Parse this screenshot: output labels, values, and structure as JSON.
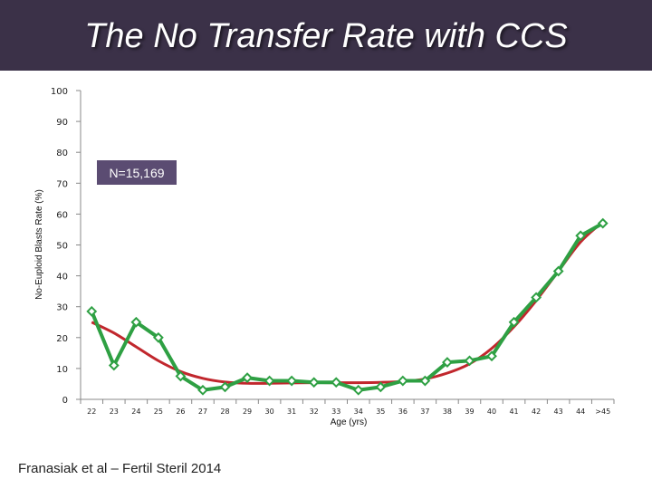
{
  "slide": {
    "title": "The No Transfer Rate with CCS",
    "annotation": "N=15,169",
    "citation": "Franasiak et al – Fertil Steril 2014"
  },
  "colors": {
    "title_bar": "#3b3148",
    "observed_line": "#2ea043",
    "observed_marker": "#2ea043",
    "trend_line": "#c1272d",
    "annotation_box": "#5b4c72"
  },
  "chart_data": {
    "type": "line",
    "title": "",
    "xlabel": "Age (yrs)",
    "ylabel": "No-Euploid Blasts Rate (%)",
    "categories": [
      "22",
      "23",
      "24",
      "25",
      "26",
      "27",
      "28",
      "29",
      "30",
      "31",
      "32",
      "33",
      "34",
      "35",
      "36",
      "37",
      "38",
      "39",
      "40",
      "41",
      "42",
      "43",
      "44",
      ">45"
    ],
    "ylim": [
      0,
      100
    ],
    "yticks": [
      0,
      10,
      20,
      30,
      40,
      50,
      60,
      70,
      80,
      90,
      100
    ],
    "grid": false,
    "series": [
      {
        "values": [
          28.5,
          11,
          25,
          20,
          7.5,
          3,
          4,
          7,
          6,
          6,
          5.5,
          5.5,
          3,
          4,
          6,
          6,
          12,
          12.5,
          14,
          25,
          33,
          41.5,
          53,
          57
        ],
        "markers": true
      },
      {
        "values": [
          25,
          21.5,
          17,
          12.5,
          9,
          6.8,
          5.6,
          5.2,
          5.2,
          5.3,
          5.4,
          5.4,
          5.4,
          5.5,
          5.8,
          6.6,
          8.5,
          11.5,
          16.5,
          23.5,
          32,
          41.5,
          51,
          57.5
        ],
        "markers": false
      }
    ]
  }
}
